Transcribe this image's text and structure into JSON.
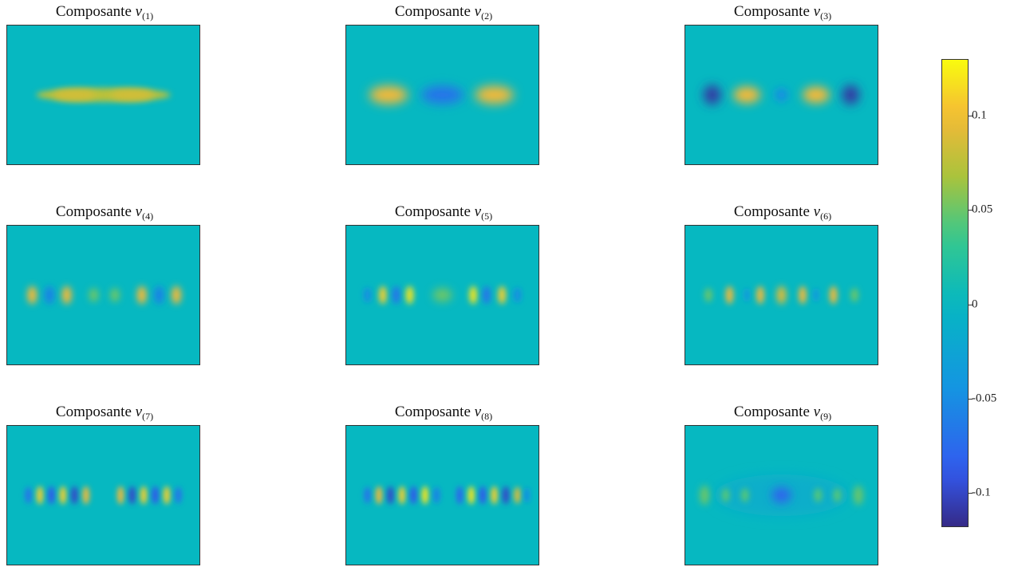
{
  "chart_data": {
    "type": "heatmap",
    "colormap": "parula",
    "background_color": "#06b8c1",
    "clim": [
      -0.118,
      0.13
    ],
    "colorbar": {
      "ticks": [
        0.1,
        0.05,
        0,
        -0.05,
        -0.1
      ],
      "tick_labels": [
        "0.1",
        "0.05",
        "0",
        "-0.05",
        "-0.1"
      ]
    },
    "panels": [
      {
        "title_prefix": "Composante ",
        "var": "v",
        "sub": "(1)",
        "blobs": [
          {
            "u": 0.5,
            "w": 0.7,
            "h": 0.1,
            "val": 0.075,
            "b": 0.6
          },
          {
            "u": 0.35,
            "w": 0.22,
            "h": 0.08,
            "val": 0.085,
            "b": 1
          },
          {
            "u": 0.65,
            "w": 0.22,
            "h": 0.08,
            "val": 0.085,
            "b": 1
          }
        ]
      },
      {
        "title_prefix": "Composante ",
        "var": "v",
        "sub": "(2)",
        "blobs": [
          {
            "u": 0.22,
            "w": 0.2,
            "h": 0.13,
            "val": 0.1
          },
          {
            "u": 0.5,
            "w": 0.22,
            "h": 0.13,
            "val": -0.07
          },
          {
            "u": 0.77,
            "w": 0.2,
            "h": 0.13,
            "val": 0.1
          }
        ]
      },
      {
        "title_prefix": "Composante ",
        "var": "v",
        "sub": "(3)",
        "blobs": [
          {
            "u": 0.14,
            "w": 0.09,
            "h": 0.14,
            "val": -0.11
          },
          {
            "u": 0.32,
            "w": 0.14,
            "h": 0.12,
            "val": 0.1
          },
          {
            "u": 0.5,
            "w": 0.07,
            "h": 0.1,
            "val": -0.05
          },
          {
            "u": 0.68,
            "w": 0.14,
            "h": 0.12,
            "val": 0.1
          },
          {
            "u": 0.86,
            "w": 0.09,
            "h": 0.14,
            "val": -0.11
          }
        ]
      },
      {
        "title_prefix": "Composante ",
        "var": "v",
        "sub": "(4)",
        "blobs": [
          {
            "u": 0.13,
            "w": 0.05,
            "h": 0.13,
            "val": 0.1
          },
          {
            "u": 0.22,
            "w": 0.05,
            "h": 0.13,
            "val": -0.06
          },
          {
            "u": 0.31,
            "w": 0.05,
            "h": 0.13,
            "val": 0.1
          },
          {
            "u": 0.45,
            "w": 0.05,
            "h": 0.1,
            "val": 0.05
          },
          {
            "u": 0.56,
            "w": 0.05,
            "h": 0.1,
            "val": 0.05
          },
          {
            "u": 0.7,
            "w": 0.05,
            "h": 0.13,
            "val": 0.1
          },
          {
            "u": 0.79,
            "w": 0.05,
            "h": 0.13,
            "val": -0.06
          },
          {
            "u": 0.88,
            "w": 0.05,
            "h": 0.13,
            "val": 0.1
          }
        ]
      },
      {
        "title_prefix": "Composante ",
        "var": "v",
        "sub": "(5)",
        "blobs": [
          {
            "u": 0.11,
            "w": 0.04,
            "h": 0.11,
            "val": -0.05
          },
          {
            "u": 0.19,
            "w": 0.04,
            "h": 0.13,
            "val": 0.11
          },
          {
            "u": 0.26,
            "w": 0.04,
            "h": 0.13,
            "val": -0.07
          },
          {
            "u": 0.33,
            "w": 0.04,
            "h": 0.13,
            "val": 0.12
          },
          {
            "u": 0.5,
            "w": 0.1,
            "h": 0.1,
            "val": 0.05
          },
          {
            "u": 0.66,
            "w": 0.04,
            "h": 0.13,
            "val": 0.12
          },
          {
            "u": 0.73,
            "w": 0.04,
            "h": 0.13,
            "val": -0.07
          },
          {
            "u": 0.81,
            "w": 0.04,
            "h": 0.13,
            "val": 0.11
          },
          {
            "u": 0.89,
            "w": 0.04,
            "h": 0.11,
            "val": -0.05
          }
        ]
      },
      {
        "title_prefix": "Composante ",
        "var": "v",
        "sub": "(6)",
        "blobs": [
          {
            "u": 0.12,
            "w": 0.04,
            "h": 0.1,
            "val": 0.05
          },
          {
            "u": 0.23,
            "w": 0.04,
            "h": 0.13,
            "val": 0.1
          },
          {
            "u": 0.32,
            "w": 0.03,
            "h": 0.1,
            "val": -0.04
          },
          {
            "u": 0.39,
            "w": 0.04,
            "h": 0.13,
            "val": 0.1
          },
          {
            "u": 0.5,
            "w": 0.05,
            "h": 0.13,
            "val": 0.09
          },
          {
            "u": 0.61,
            "w": 0.04,
            "h": 0.13,
            "val": 0.1
          },
          {
            "u": 0.68,
            "w": 0.03,
            "h": 0.1,
            "val": -0.04
          },
          {
            "u": 0.77,
            "w": 0.04,
            "h": 0.13,
            "val": 0.1
          },
          {
            "u": 0.88,
            "w": 0.04,
            "h": 0.1,
            "val": 0.05
          }
        ]
      },
      {
        "title_prefix": "Composante ",
        "var": "v",
        "sub": "(7)",
        "blobs": [
          {
            "u": 0.11,
            "w": 0.035,
            "h": 0.12,
            "val": -0.07
          },
          {
            "u": 0.17,
            "w": 0.035,
            "h": 0.13,
            "val": 0.11
          },
          {
            "u": 0.23,
            "w": 0.035,
            "h": 0.13,
            "val": -0.09
          },
          {
            "u": 0.29,
            "w": 0.035,
            "h": 0.13,
            "val": 0.11
          },
          {
            "u": 0.35,
            "w": 0.035,
            "h": 0.13,
            "val": -0.1
          },
          {
            "u": 0.41,
            "w": 0.035,
            "h": 0.13,
            "val": 0.1
          },
          {
            "u": 0.59,
            "w": 0.035,
            "h": 0.13,
            "val": 0.1
          },
          {
            "u": 0.65,
            "w": 0.035,
            "h": 0.13,
            "val": -0.1
          },
          {
            "u": 0.71,
            "w": 0.035,
            "h": 0.13,
            "val": 0.11
          },
          {
            "u": 0.77,
            "w": 0.035,
            "h": 0.13,
            "val": -0.09
          },
          {
            "u": 0.83,
            "w": 0.035,
            "h": 0.13,
            "val": 0.11
          },
          {
            "u": 0.89,
            "w": 0.035,
            "h": 0.12,
            "val": -0.07
          }
        ]
      },
      {
        "title_prefix": "Composante ",
        "var": "v",
        "sub": "(8)",
        "blobs": [
          {
            "u": 0.11,
            "w": 0.035,
            "h": 0.12,
            "val": -0.07
          },
          {
            "u": 0.17,
            "w": 0.035,
            "h": 0.13,
            "val": 0.1
          },
          {
            "u": 0.23,
            "w": 0.035,
            "h": 0.13,
            "val": -0.1
          },
          {
            "u": 0.29,
            "w": 0.035,
            "h": 0.13,
            "val": 0.11
          },
          {
            "u": 0.35,
            "w": 0.035,
            "h": 0.13,
            "val": -0.09
          },
          {
            "u": 0.41,
            "w": 0.035,
            "h": 0.13,
            "val": 0.12
          },
          {
            "u": 0.47,
            "w": 0.035,
            "h": 0.12,
            "val": -0.06
          },
          {
            "u": 0.59,
            "w": 0.035,
            "h": 0.13,
            "val": -0.08
          },
          {
            "u": 0.65,
            "w": 0.035,
            "h": 0.13,
            "val": 0.12
          },
          {
            "u": 0.71,
            "w": 0.035,
            "h": 0.13,
            "val": -0.09
          },
          {
            "u": 0.77,
            "w": 0.035,
            "h": 0.13,
            "val": 0.11
          },
          {
            "u": 0.83,
            "w": 0.035,
            "h": 0.13,
            "val": -0.1
          },
          {
            "u": 0.89,
            "w": 0.035,
            "h": 0.12,
            "val": 0.09
          },
          {
            "u": 0.94,
            "w": 0.03,
            "h": 0.11,
            "val": -0.05
          }
        ]
      },
      {
        "title_prefix": "Composante ",
        "var": "v",
        "sub": "(9)",
        "blobs": [
          {
            "u": 0.5,
            "w": 0.7,
            "h": 0.3,
            "val": -0.012,
            "b": 0.5
          },
          {
            "u": 0.1,
            "w": 0.05,
            "h": 0.14,
            "val": 0.05
          },
          {
            "u": 0.21,
            "w": 0.04,
            "h": 0.1,
            "val": 0.045
          },
          {
            "u": 0.31,
            "w": 0.04,
            "h": 0.1,
            "val": 0.045
          },
          {
            "u": 0.5,
            "w": 0.1,
            "h": 0.11,
            "val": -0.08
          },
          {
            "u": 0.69,
            "w": 0.04,
            "h": 0.1,
            "val": 0.045
          },
          {
            "u": 0.79,
            "w": 0.04,
            "h": 0.1,
            "val": 0.045
          },
          {
            "u": 0.9,
            "w": 0.05,
            "h": 0.14,
            "val": 0.05
          }
        ]
      }
    ]
  }
}
